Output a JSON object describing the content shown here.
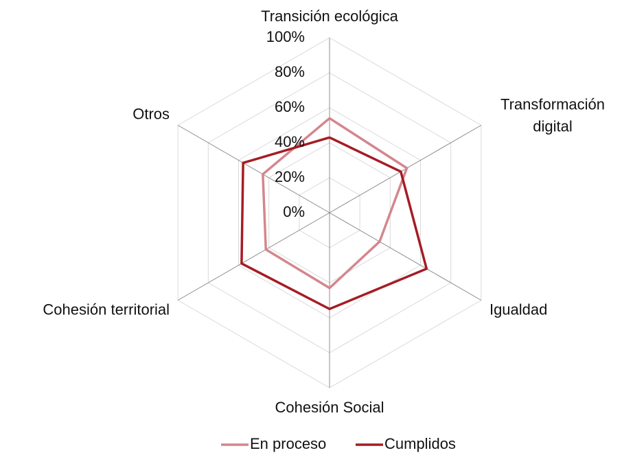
{
  "chart_data": {
    "type": "radar",
    "categories": [
      "Transición ecológica",
      "Transformación digital",
      "Igualdad",
      "Cohesión Social",
      "Cohesión territorial",
      "Otros"
    ],
    "series": [
      {
        "name": "En proceso",
        "color": "#d4868c",
        "values": [
          54,
          51,
          33,
          43,
          42,
          44
        ]
      },
      {
        "name": "Cumplidos",
        "color": "#a51c24",
        "values": [
          43,
          47,
          64,
          55,
          58,
          57
        ]
      }
    ],
    "ylim": [
      0,
      100
    ],
    "yticks": [
      {
        "value": 0,
        "label": "0%"
      },
      {
        "value": 20,
        "label": "20%"
      },
      {
        "value": 40,
        "label": "40%"
      },
      {
        "value": 60,
        "label": "60%"
      },
      {
        "value": 80,
        "label": "80%"
      },
      {
        "value": 100,
        "label": "100%"
      }
    ],
    "grid": true,
    "legend": "bottom"
  }
}
